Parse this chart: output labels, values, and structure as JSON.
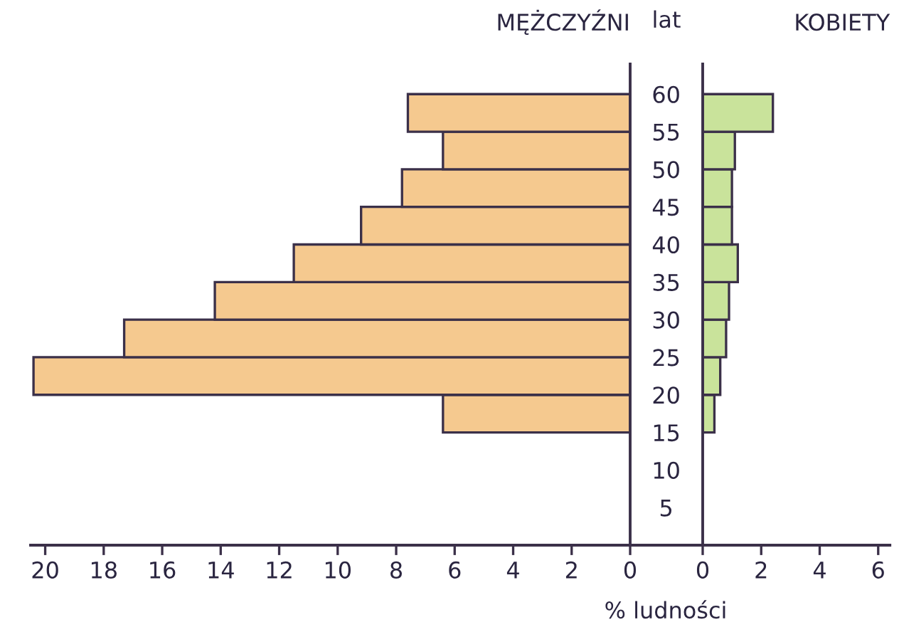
{
  "chart_data": [
    {
      "type": "histogram",
      "orientation": "horizontal",
      "title": "MĘŻCZYŹNI",
      "xlabel": "% ludności",
      "bins": [
        15,
        20,
        25,
        30,
        35,
        40,
        45,
        50,
        55,
        60
      ],
      "values": [
        6.4,
        20.4,
        17.3,
        14.2,
        11.5,
        9.2,
        7.8,
        6.4,
        7.6
      ],
      "color": "#f5c98f",
      "xlim": [
        20.5,
        0
      ],
      "xticks": [
        20,
        18,
        16,
        14,
        12,
        10,
        8,
        6,
        4,
        2,
        0
      ],
      "ylim": [
        0,
        64
      ],
      "tick_labels": "x"
    },
    {
      "type": "histogram",
      "orientation": "horizontal",
      "title": "KOBIETY",
      "ylabel": "lat",
      "bins": [
        15,
        20,
        25,
        30,
        35,
        40,
        45,
        50,
        55,
        60
      ],
      "values": [
        0.4,
        0.6,
        0.8,
        0.9,
        1.2,
        1.0,
        1.0,
        1.1,
        2.4
      ],
      "color": "#c9e39b",
      "xlim": [
        0,
        6.4
      ],
      "xticks": [
        0,
        2,
        4,
        6
      ],
      "ylim": [
        0,
        64
      ],
      "yticks": [
        5,
        10,
        15,
        20,
        25,
        30,
        35,
        40,
        45,
        50,
        55,
        60
      ]
    }
  ]
}
